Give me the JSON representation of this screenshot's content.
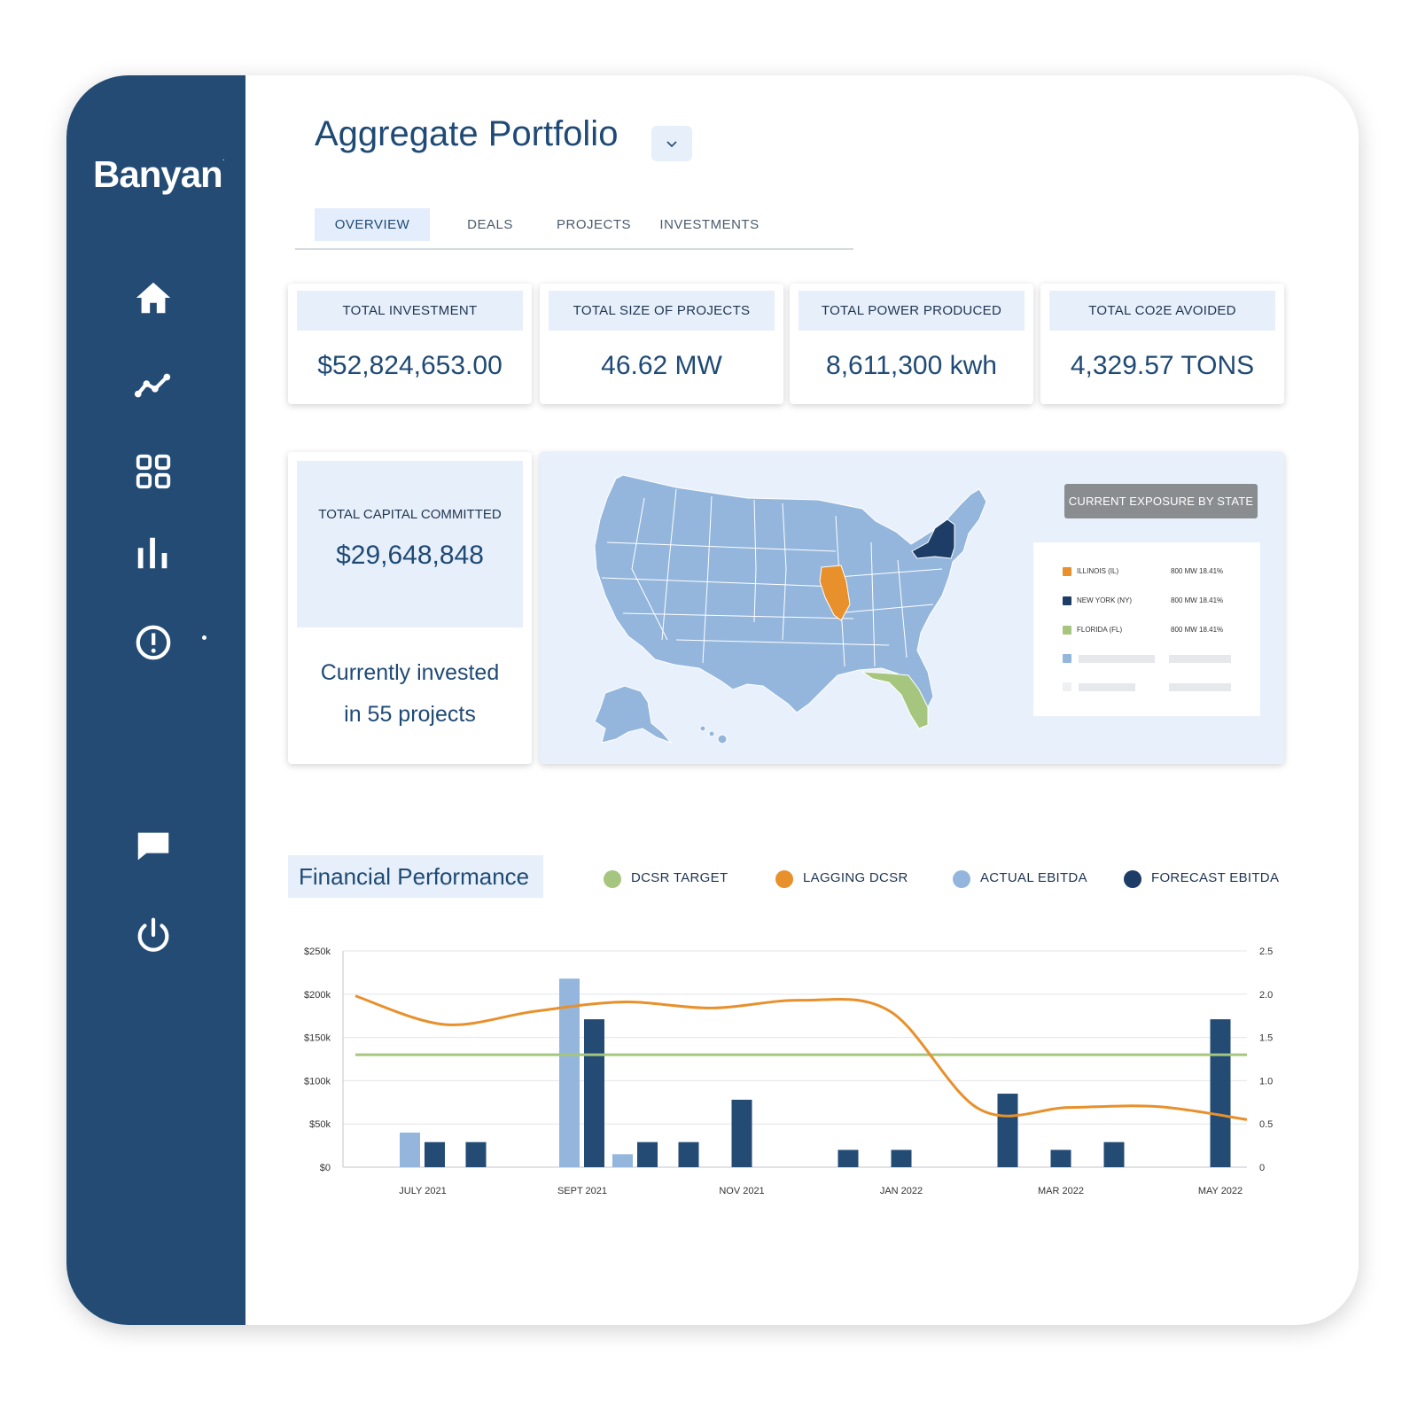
{
  "app": {
    "logo": "Banyan",
    "logo_mark": "."
  },
  "nav": [
    {
      "id": "home",
      "icon": "home-icon"
    },
    {
      "id": "trends",
      "icon": "trend-line-icon"
    },
    {
      "id": "grid",
      "icon": "grid-icon"
    },
    {
      "id": "stats",
      "icon": "bar-chart-icon"
    },
    {
      "id": "alerts",
      "icon": "alert-icon"
    },
    {
      "id": "messages",
      "icon": "chat-icon"
    },
    {
      "id": "logout",
      "icon": "power-icon"
    }
  ],
  "header": {
    "title": "Aggregate Portfolio",
    "dropdown_icon": "chevron-down-icon"
  },
  "tabs": [
    {
      "label": "OVERVIEW",
      "active": true
    },
    {
      "label": "DEALS",
      "active": false
    },
    {
      "label": "PROJECTS",
      "active": false
    },
    {
      "label": "INVESTMENTS",
      "active": false
    }
  ],
  "kpis": [
    {
      "label": "TOTAL INVESTMENT",
      "value": "$52,824,653.00"
    },
    {
      "label": "TOTAL SIZE OF PROJECTS",
      "value": "46.62 MW"
    },
    {
      "label": "TOTAL POWER PRODUCED",
      "value": "8,611,300 kwh"
    },
    {
      "label": "TOTAL CO2E AVOIDED",
      "value": "4,329.57 TONS"
    }
  ],
  "capital": {
    "label": "TOTAL CAPITAL COMMITTED",
    "value": "$29,648,848",
    "text_line1": "Currently invested",
    "text_line2": "in 55 projects"
  },
  "exposure": {
    "badge": "CURRENT EXPOSURE BY STATE",
    "rows": [
      {
        "name": "ILLINOIS (IL)",
        "value": "800 MW 18.41%",
        "color": "#e8902b"
      },
      {
        "name": "NEW YORK (NY)",
        "value": "800 MW 18.41%",
        "color": "#1d3d66"
      },
      {
        "name": "FLORIDA (FL)",
        "value": "800 MW 18.41%",
        "color": "#a6c67f"
      }
    ],
    "colors": {
      "default_state": "#94b6dc",
      "placeholder_blue": "#94b6dc",
      "placeholder_grey": "#e6e8eb"
    }
  },
  "financial": {
    "title": "Financial Performance",
    "legend": [
      {
        "label": "DCSR TARGET",
        "color": "#a6c67f"
      },
      {
        "label": "LAGGING DCSR",
        "color": "#e8902b"
      },
      {
        "label": "ACTUAL EBITDA",
        "color": "#94b6dc"
      },
      {
        "label": "FORECAST EBITDA",
        "color": "#1d3d66"
      }
    ]
  },
  "chart_data": {
    "type": "bar",
    "left_axis": {
      "ticks": [
        "$0",
        "$50k",
        "$100k",
        "$150k",
        "$200k",
        "$250k"
      ],
      "ylim": [
        0,
        250000
      ]
    },
    "right_axis": {
      "ticks": [
        "0",
        "0.5",
        "1.0",
        "1.5",
        "2.0",
        "2.5"
      ],
      "ylim": [
        0,
        2.5
      ]
    },
    "x_labels": [
      {
        "label": "JULY 2021",
        "at": 1
      },
      {
        "label": "SEPT 2021",
        "at": 4
      },
      {
        "label": "NOV 2021",
        "at": 7
      },
      {
        "label": "JAN 2022",
        "at": 10
      },
      {
        "label": "MAR 2022",
        "at": 13
      },
      {
        "label": "MAY 2022",
        "at": 16
      }
    ],
    "bar_groups": [
      {
        "actual": 40000,
        "forecast": 29000
      },
      {
        "actual": null,
        "forecast": 29000
      },
      {
        "actual": 218000,
        "forecast": 171000
      },
      {
        "actual": 15000,
        "forecast": 29000
      },
      {
        "actual": null,
        "forecast": 29000
      },
      {
        "actual": null,
        "forecast": 78000
      },
      {
        "actual": null,
        "forecast": 20000
      },
      {
        "actual": null,
        "forecast": 20000
      },
      {
        "actual": null,
        "forecast": 85000
      },
      {
        "actual": null,
        "forecast": 20000
      },
      {
        "actual": null,
        "forecast": 29000
      },
      {
        "actual": null,
        "forecast": 171000
      }
    ],
    "dcsr_target": 1.3,
    "lagging_dcsr": [
      1.98,
      1.65,
      1.8,
      1.91,
      1.84,
      1.93,
      1.8,
      0.67,
      0.69,
      0.7,
      0.55
    ],
    "grid": true
  }
}
